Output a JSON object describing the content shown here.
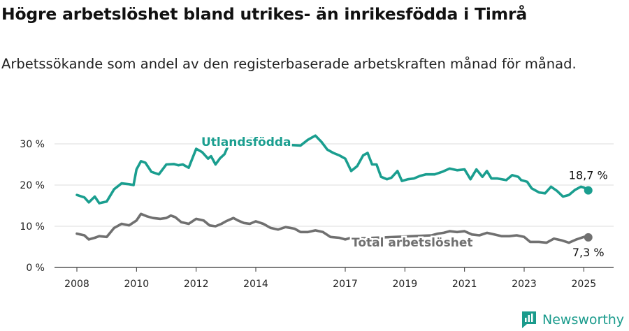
{
  "title": "Högre arbetslöshet bland utrikes- än inrikesfödda i Timrå",
  "subtitle": "Arbetssökande som andel av den registerbaserade arbetskraften månad för månad.",
  "brand": "Newsworthy",
  "colors": {
    "utlandsfodda": "#1a9e8f",
    "total": "#707070",
    "grid": "#dddddd"
  },
  "chart_data": {
    "type": "line",
    "title": "Högre arbetslöshet bland utrikes- än inrikesfödda i Timrå",
    "ylabel": "",
    "xlabel": "",
    "ylim": [
      0,
      30
    ],
    "yticks": [
      0,
      10,
      20,
      30
    ],
    "ytick_labels": [
      "0 %",
      "10 %",
      "20 %",
      "30 %"
    ],
    "xlim": [
      2007.25,
      2026.0
    ],
    "xticks": [
      2008,
      2010,
      2012,
      2014,
      2017,
      2019,
      2021,
      2023,
      2025
    ],
    "xtick_labels": [
      "2008",
      "2010",
      "2012",
      "2014",
      "2017",
      "2019",
      "2021",
      "2023",
      "2025"
    ],
    "grid": true,
    "series": [
      {
        "name": "Utlandsfödda",
        "end_label": "18,7 %",
        "points": [
          [
            2008.0,
            17.6
          ],
          [
            2008.25,
            17.0
          ],
          [
            2008.4,
            15.8
          ],
          [
            2008.6,
            17.2
          ],
          [
            2008.75,
            15.6
          ],
          [
            2009.0,
            16.0
          ],
          [
            2009.25,
            19.0
          ],
          [
            2009.5,
            20.4
          ],
          [
            2009.75,
            20.2
          ],
          [
            2009.9,
            20.0
          ],
          [
            2010.0,
            23.8
          ],
          [
            2010.15,
            25.8
          ],
          [
            2010.3,
            25.4
          ],
          [
            2010.5,
            23.2
          ],
          [
            2010.75,
            22.6
          ],
          [
            2011.0,
            25.0
          ],
          [
            2011.25,
            25.1
          ],
          [
            2011.4,
            24.8
          ],
          [
            2011.55,
            25.0
          ],
          [
            2011.75,
            24.2
          ],
          [
            2012.0,
            28.8
          ],
          [
            2012.2,
            28.0
          ],
          [
            2012.4,
            26.4
          ],
          [
            2012.5,
            27.0
          ],
          [
            2012.65,
            25.0
          ],
          [
            2012.8,
            26.5
          ],
          [
            2012.95,
            27.5
          ],
          [
            2013.1,
            30.0
          ],
          [
            2013.5,
            31.0
          ],
          [
            2014.0,
            31.4
          ],
          [
            2014.5,
            30.2
          ],
          [
            2015.0,
            29.8
          ],
          [
            2015.5,
            29.6
          ],
          [
            2015.75,
            31.0
          ],
          [
            2016.0,
            32.0
          ],
          [
            2016.2,
            30.5
          ],
          [
            2016.4,
            28.6
          ],
          [
            2016.6,
            27.8
          ],
          [
            2016.8,
            27.2
          ],
          [
            2017.0,
            26.4
          ],
          [
            2017.2,
            23.4
          ],
          [
            2017.4,
            24.6
          ],
          [
            2017.6,
            27.2
          ],
          [
            2017.75,
            27.8
          ],
          [
            2017.9,
            25.0
          ],
          [
            2018.05,
            25.0
          ],
          [
            2018.2,
            22.0
          ],
          [
            2018.4,
            21.4
          ],
          [
            2018.55,
            21.8
          ],
          [
            2018.75,
            23.4
          ],
          [
            2018.9,
            21.0
          ],
          [
            2019.1,
            21.4
          ],
          [
            2019.3,
            21.6
          ],
          [
            2019.5,
            22.2
          ],
          [
            2019.7,
            22.6
          ],
          [
            2020.0,
            22.6
          ],
          [
            2020.25,
            23.2
          ],
          [
            2020.5,
            24.0
          ],
          [
            2020.75,
            23.6
          ],
          [
            2021.0,
            23.8
          ],
          [
            2021.2,
            21.4
          ],
          [
            2021.4,
            23.8
          ],
          [
            2021.6,
            22.0
          ],
          [
            2021.75,
            23.4
          ],
          [
            2021.9,
            21.6
          ],
          [
            2022.1,
            21.6
          ],
          [
            2022.4,
            21.2
          ],
          [
            2022.6,
            22.4
          ],
          [
            2022.8,
            22.0
          ],
          [
            2022.9,
            21.2
          ],
          [
            2023.1,
            20.8
          ],
          [
            2023.25,
            19.2
          ],
          [
            2023.5,
            18.2
          ],
          [
            2023.7,
            18.0
          ],
          [
            2023.9,
            19.6
          ],
          [
            2024.1,
            18.6
          ],
          [
            2024.3,
            17.2
          ],
          [
            2024.5,
            17.6
          ],
          [
            2024.7,
            18.8
          ],
          [
            2024.9,
            19.6
          ],
          [
            2025.0,
            19.4
          ],
          [
            2025.15,
            18.7
          ]
        ]
      },
      {
        "name": "Total arbetslöshet",
        "end_label": "7,3 %",
        "points": [
          [
            2008.0,
            8.2
          ],
          [
            2008.25,
            7.8
          ],
          [
            2008.4,
            6.8
          ],
          [
            2008.6,
            7.2
          ],
          [
            2008.75,
            7.6
          ],
          [
            2009.0,
            7.4
          ],
          [
            2009.25,
            9.6
          ],
          [
            2009.5,
            10.6
          ],
          [
            2009.75,
            10.2
          ],
          [
            2010.0,
            11.4
          ],
          [
            2010.15,
            13.0
          ],
          [
            2010.35,
            12.4
          ],
          [
            2010.55,
            12.0
          ],
          [
            2010.8,
            11.8
          ],
          [
            2011.0,
            12.0
          ],
          [
            2011.15,
            12.6
          ],
          [
            2011.3,
            12.2
          ],
          [
            2011.5,
            11.0
          ],
          [
            2011.75,
            10.6
          ],
          [
            2012.0,
            11.8
          ],
          [
            2012.25,
            11.4
          ],
          [
            2012.45,
            10.2
          ],
          [
            2012.65,
            10.0
          ],
          [
            2012.85,
            10.6
          ],
          [
            2013.0,
            11.2
          ],
          [
            2013.25,
            12.0
          ],
          [
            2013.4,
            11.4
          ],
          [
            2013.6,
            10.8
          ],
          [
            2013.8,
            10.6
          ],
          [
            2014.0,
            11.2
          ],
          [
            2014.25,
            10.6
          ],
          [
            2014.5,
            9.6
          ],
          [
            2014.75,
            9.2
          ],
          [
            2015.0,
            9.8
          ],
          [
            2015.3,
            9.4
          ],
          [
            2015.5,
            8.6
          ],
          [
            2015.75,
            8.6
          ],
          [
            2016.0,
            9.0
          ],
          [
            2016.25,
            8.6
          ],
          [
            2016.5,
            7.4
          ],
          [
            2016.8,
            7.2
          ],
          [
            2017.0,
            6.8
          ],
          [
            2017.2,
            7.2
          ],
          [
            2017.3,
            7.0
          ],
          [
            2019.9,
            7.8
          ],
          [
            2020.1,
            8.2
          ],
          [
            2020.3,
            8.4
          ],
          [
            2020.5,
            8.8
          ],
          [
            2020.75,
            8.6
          ],
          [
            2021.0,
            8.8
          ],
          [
            2021.25,
            8.0
          ],
          [
            2021.5,
            7.8
          ],
          [
            2021.75,
            8.4
          ],
          [
            2022.0,
            8.0
          ],
          [
            2022.25,
            7.6
          ],
          [
            2022.5,
            7.6
          ],
          [
            2022.75,
            7.8
          ],
          [
            2023.0,
            7.4
          ],
          [
            2023.2,
            6.2
          ],
          [
            2023.5,
            6.2
          ],
          [
            2023.75,
            6.0
          ],
          [
            2024.0,
            7.0
          ],
          [
            2024.25,
            6.6
          ],
          [
            2024.5,
            6.0
          ],
          [
            2024.75,
            6.8
          ],
          [
            2025.0,
            7.4
          ],
          [
            2025.15,
            7.3
          ]
        ]
      }
    ]
  }
}
